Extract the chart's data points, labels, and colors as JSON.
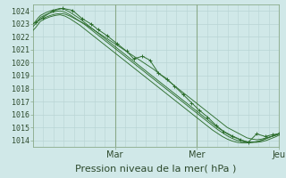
{
  "xlabel": "Pression niveau de la mer( hPa )",
  "bg_color": "#d0e8e8",
  "grid_color_h": "#b8d4d4",
  "grid_color_v": "#b8d4d4",
  "day_line_color": "#8aaa8a",
  "line_color": "#2d6e2d",
  "ylim": [
    1013.5,
    1024.5
  ],
  "yticks": [
    1014,
    1015,
    1016,
    1017,
    1018,
    1019,
    1020,
    1021,
    1022,
    1023,
    1024
  ],
  "day_labels": [
    "Mar",
    "Mer",
    "Jeu"
  ],
  "day_positions": [
    0.333,
    0.667,
    1.0
  ],
  "xlabel_fontsize": 8,
  "tick_fontsize": 6,
  "day_tick_fontsize": 7,
  "series": [
    {
      "x": [
        0.0,
        0.01,
        0.02,
        0.03,
        0.05,
        0.07,
        0.09,
        0.11,
        0.13,
        0.15,
        0.17,
        0.19,
        0.21,
        0.23,
        0.25,
        0.27,
        0.29,
        0.31,
        0.33,
        0.35,
        0.37,
        0.39,
        0.41,
        0.43,
        0.45,
        0.47,
        0.49,
        0.51,
        0.53,
        0.55,
        0.57,
        0.59,
        0.61,
        0.63,
        0.65,
        0.67,
        0.69,
        0.71,
        0.73,
        0.75,
        0.77,
        0.79,
        0.81,
        0.83,
        0.85,
        0.87,
        0.89,
        0.91,
        0.93,
        0.95,
        0.97,
        0.99,
        1.0
      ],
      "y": [
        1023.0,
        1023.1,
        1023.2,
        1023.35,
        1023.5,
        1023.65,
        1023.75,
        1023.8,
        1023.75,
        1023.6,
        1023.4,
        1023.2,
        1023.0,
        1022.75,
        1022.5,
        1022.25,
        1022.0,
        1021.75,
        1021.5,
        1021.25,
        1021.0,
        1020.75,
        1020.5,
        1020.25,
        1020.0,
        1019.75,
        1019.5,
        1019.2,
        1018.9,
        1018.6,
        1018.3,
        1018.0,
        1017.7,
        1017.4,
        1017.1,
        1016.8,
        1016.5,
        1016.2,
        1015.9,
        1015.6,
        1015.3,
        1015.0,
        1014.8,
        1014.6,
        1014.4,
        1014.2,
        1014.1,
        1014.05,
        1014.1,
        1014.2,
        1014.3,
        1014.4,
        1014.5
      ]
    },
    {
      "x": [
        0.0,
        0.01,
        0.02,
        0.03,
        0.05,
        0.07,
        0.09,
        0.11,
        0.13,
        0.15,
        0.17,
        0.19,
        0.21,
        0.23,
        0.25,
        0.27,
        0.29,
        0.31,
        0.33,
        0.35,
        0.37,
        0.39,
        0.41,
        0.43,
        0.45,
        0.47,
        0.49,
        0.51,
        0.53,
        0.55,
        0.57,
        0.59,
        0.61,
        0.63,
        0.65,
        0.67,
        0.69,
        0.71,
        0.73,
        0.75,
        0.77,
        0.79,
        0.81,
        0.83,
        0.85,
        0.87,
        0.89,
        0.91,
        0.93,
        0.95,
        0.97,
        0.99,
        1.0
      ],
      "y": [
        1023.0,
        1023.2,
        1023.45,
        1023.65,
        1023.85,
        1024.0,
        1024.1,
        1024.2,
        1024.1,
        1023.9,
        1023.65,
        1023.4,
        1023.1,
        1022.8,
        1022.5,
        1022.2,
        1021.9,
        1021.6,
        1021.3,
        1021.0,
        1020.7,
        1020.4,
        1020.1,
        1019.8,
        1019.5,
        1019.2,
        1018.9,
        1018.6,
        1018.3,
        1018.0,
        1017.7,
        1017.4,
        1017.1,
        1016.8,
        1016.5,
        1016.2,
        1015.9,
        1015.6,
        1015.3,
        1015.0,
        1014.75,
        1014.5,
        1014.3,
        1014.15,
        1014.0,
        1013.9,
        1013.85,
        1013.85,
        1013.9,
        1014.0,
        1014.15,
        1014.3,
        1014.4
      ]
    },
    {
      "x": [
        0.0,
        0.01,
        0.02,
        0.03,
        0.05,
        0.07,
        0.09,
        0.11,
        0.13,
        0.15,
        0.17,
        0.19,
        0.21,
        0.23,
        0.25,
        0.27,
        0.29,
        0.31,
        0.33,
        0.35,
        0.37,
        0.39,
        0.41,
        0.43,
        0.45,
        0.47,
        0.49,
        0.51,
        0.53,
        0.55,
        0.57,
        0.59,
        0.61,
        0.63,
        0.65,
        0.67,
        0.69,
        0.71,
        0.73,
        0.75,
        0.77,
        0.79,
        0.81,
        0.83,
        0.85,
        0.87,
        0.89,
        0.91,
        0.93,
        0.95,
        0.97,
        0.99,
        1.0
      ],
      "y": [
        1022.8,
        1023.0,
        1023.25,
        1023.5,
        1023.7,
        1023.85,
        1023.95,
        1024.0,
        1023.9,
        1023.7,
        1023.45,
        1023.2,
        1022.95,
        1022.65,
        1022.35,
        1022.05,
        1021.75,
        1021.45,
        1021.15,
        1020.85,
        1020.55,
        1020.25,
        1019.95,
        1019.65,
        1019.35,
        1019.05,
        1018.75,
        1018.45,
        1018.15,
        1017.85,
        1017.55,
        1017.25,
        1016.95,
        1016.65,
        1016.35,
        1016.05,
        1015.75,
        1015.45,
        1015.15,
        1014.85,
        1014.6,
        1014.35,
        1014.15,
        1014.0,
        1013.9,
        1013.85,
        1013.85,
        1013.9,
        1014.0,
        1014.15,
        1014.3,
        1014.45,
        1014.5
      ]
    },
    {
      "x": [
        0.0,
        0.01,
        0.02,
        0.03,
        0.05,
        0.07,
        0.09,
        0.11,
        0.13,
        0.15,
        0.17,
        0.19,
        0.21,
        0.23,
        0.25,
        0.27,
        0.29,
        0.31,
        0.33,
        0.35,
        0.37,
        0.39,
        0.41,
        0.43,
        0.45,
        0.47,
        0.49,
        0.51,
        0.53,
        0.55,
        0.57,
        0.59,
        0.61,
        0.63,
        0.65,
        0.67,
        0.69,
        0.71,
        0.73,
        0.75,
        0.77,
        0.79,
        0.81,
        0.83,
        0.85,
        0.87,
        0.89,
        0.91,
        0.93,
        0.95,
        0.97,
        0.99,
        1.0
      ],
      "y": [
        1022.5,
        1022.7,
        1022.95,
        1023.2,
        1023.4,
        1023.55,
        1023.65,
        1023.7,
        1023.6,
        1023.4,
        1023.15,
        1022.9,
        1022.6,
        1022.3,
        1022.0,
        1021.7,
        1021.4,
        1021.1,
        1020.8,
        1020.5,
        1020.2,
        1019.9,
        1019.6,
        1019.3,
        1019.0,
        1018.7,
        1018.4,
        1018.1,
        1017.8,
        1017.5,
        1017.2,
        1016.9,
        1016.6,
        1016.3,
        1016.0,
        1015.7,
        1015.4,
        1015.1,
        1014.8,
        1014.55,
        1014.3,
        1014.1,
        1013.95,
        1013.85,
        1013.8,
        1013.8,
        1013.85,
        1013.9,
        1014.0,
        1014.15,
        1014.3,
        1014.45,
        1014.55
      ]
    },
    {
      "x": [
        0.01,
        0.04,
        0.08,
        0.12,
        0.16,
        0.2,
        0.235,
        0.265,
        0.3,
        0.34,
        0.38,
        0.41,
        0.445,
        0.475,
        0.51,
        0.545,
        0.575,
        0.61,
        0.645,
        0.675,
        0.71,
        0.745,
        0.775,
        0.81,
        0.845,
        0.875,
        0.91,
        0.945,
        0.975,
        1.0
      ],
      "y": [
        1023.1,
        1023.5,
        1024.0,
        1024.2,
        1024.05,
        1023.4,
        1023.0,
        1022.55,
        1022.1,
        1021.5,
        1020.9,
        1020.3,
        1020.5,
        1020.2,
        1019.2,
        1018.75,
        1018.2,
        1017.55,
        1016.9,
        1016.35,
        1015.8,
        1015.15,
        1014.7,
        1014.35,
        1014.05,
        1013.85,
        1014.5,
        1014.3,
        1014.45,
        1014.5
      ],
      "marker": true
    }
  ]
}
